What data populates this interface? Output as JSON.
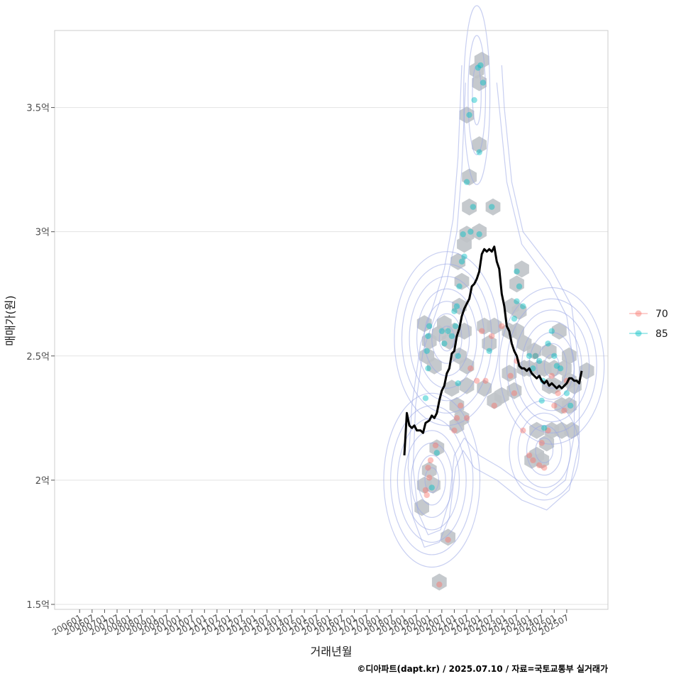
{
  "chart_data": {
    "type": "scatter",
    "xlabel": "거래년월",
    "ylabel": "매매가(원)",
    "caption": "©디아파트(dapt.kr) / 2025.07.10 / 자료=국토교통부 실거래가",
    "x_ticks": [
      "200601",
      "200607",
      "200701",
      "200707",
      "200801",
      "200807",
      "200901",
      "200907",
      "201001",
      "201007",
      "201101",
      "201107",
      "201201",
      "201207",
      "201301",
      "201307",
      "201401",
      "201407",
      "201501",
      "201507",
      "201601",
      "201607",
      "201701",
      "201707",
      "201801",
      "201807",
      "201901",
      "201907",
      "202001",
      "202007",
      "202101",
      "202107",
      "202201",
      "202207",
      "202301",
      "202307",
      "202401",
      "202407",
      "202501",
      "202507"
    ],
    "y_ticks": [
      {
        "value": 1.5,
        "label": "1.5억"
      },
      {
        "value": 2.0,
        "label": "2억"
      },
      {
        "value": 2.5,
        "label": "2.5억"
      },
      {
        "value": 3.0,
        "label": "3억"
      },
      {
        "value": 3.5,
        "label": "3.5억"
      }
    ],
    "y_range": [
      1.48,
      3.81
    ],
    "x_range_index": [
      -2.0,
      42.3
    ],
    "grid": true,
    "legend_position": "right",
    "series": [
      {
        "name": "70",
        "color": "#F8766D",
        "points": [
          [
            28.8,
            1.58
          ],
          [
            27.8,
            1.94
          ],
          [
            27.7,
            1.96
          ],
          [
            28.0,
            2.01
          ],
          [
            27.9,
            2.05
          ],
          [
            28.1,
            2.08
          ],
          [
            28.5,
            2.14
          ],
          [
            29.5,
            1.76
          ],
          [
            30.0,
            2.2
          ],
          [
            30.2,
            2.25
          ],
          [
            30.5,
            2.3
          ],
          [
            31.0,
            2.25
          ],
          [
            31.3,
            2.45
          ],
          [
            31.8,
            2.4
          ],
          [
            32.2,
            2.6
          ],
          [
            33.0,
            2.58
          ],
          [
            33.2,
            2.3
          ],
          [
            34.5,
            2.42
          ],
          [
            34.8,
            2.35
          ],
          [
            35.0,
            2.48
          ],
          [
            35.5,
            2.2
          ],
          [
            36.0,
            2.1
          ],
          [
            36.3,
            2.08
          ],
          [
            36.8,
            2.06
          ],
          [
            37.2,
            2.05
          ],
          [
            37.0,
            2.15
          ],
          [
            37.5,
            2.2
          ],
          [
            38.0,
            2.3
          ],
          [
            38.3,
            2.35
          ],
          [
            38.8,
            2.28
          ],
          [
            39.0,
            2.4
          ],
          [
            37.8,
            2.42
          ],
          [
            36.5,
            2.5
          ],
          [
            33.8,
            2.62
          ],
          [
            32.5,
            2.4
          ]
        ]
      },
      {
        "name": "85",
        "color": "#00BFC4",
        "points": [
          [
            27.7,
            2.33
          ],
          [
            27.9,
            2.45
          ],
          [
            27.8,
            2.52
          ],
          [
            27.9,
            2.58
          ],
          [
            28.0,
            2.62
          ],
          [
            28.2,
            1.97
          ],
          [
            28.6,
            2.11
          ],
          [
            29.2,
            2.55
          ],
          [
            29.5,
            2.6
          ],
          [
            29.8,
            2.58
          ],
          [
            30.1,
            2.62
          ],
          [
            30.3,
            2.5
          ],
          [
            30.0,
            2.68
          ],
          [
            30.2,
            2.7
          ],
          [
            30.4,
            2.78
          ],
          [
            30.6,
            2.88
          ],
          [
            30.8,
            2.9
          ],
          [
            30.7,
            2.99
          ],
          [
            31.3,
            3.0
          ],
          [
            31.0,
            3.2
          ],
          [
            31.5,
            3.1
          ],
          [
            32.0,
            2.99
          ],
          [
            31.2,
            3.47
          ],
          [
            32.0,
            3.32
          ],
          [
            31.6,
            3.53
          ],
          [
            32.3,
            3.6
          ],
          [
            32.1,
            3.67
          ],
          [
            31.9,
            3.66
          ],
          [
            33.0,
            3.1
          ],
          [
            35.0,
            2.84
          ],
          [
            35.2,
            2.78
          ],
          [
            35.0,
            2.72
          ],
          [
            34.8,
            2.65
          ],
          [
            35.5,
            2.7
          ],
          [
            36.0,
            2.5
          ],
          [
            36.5,
            2.5
          ],
          [
            36.3,
            2.45
          ],
          [
            36.8,
            2.48
          ],
          [
            37.1,
            2.4
          ],
          [
            37.0,
            2.32
          ],
          [
            37.5,
            2.55
          ],
          [
            37.8,
            2.6
          ],
          [
            38.0,
            2.5
          ],
          [
            38.2,
            2.46
          ],
          [
            38.5,
            2.45
          ],
          [
            39.0,
            2.35
          ],
          [
            39.3,
            2.3
          ],
          [
            37.2,
            2.21
          ],
          [
            32.8,
            2.52
          ],
          [
            29.0,
            2.6
          ],
          [
            30.3,
            2.39
          ]
        ]
      }
    ],
    "trend_line": {
      "color": "#000000",
      "points": [
        [
          26.0,
          2.1
        ],
        [
          26.2,
          2.27
        ],
        [
          26.4,
          2.22
        ],
        [
          26.6,
          2.21
        ],
        [
          26.8,
          2.22
        ],
        [
          27.0,
          2.2
        ],
        [
          27.3,
          2.2
        ],
        [
          27.5,
          2.19
        ],
        [
          27.7,
          2.23
        ],
        [
          28.0,
          2.24
        ],
        [
          28.2,
          2.26
        ],
        [
          28.4,
          2.25
        ],
        [
          28.6,
          2.27
        ],
        [
          28.8,
          2.32
        ],
        [
          29.0,
          2.36
        ],
        [
          29.2,
          2.38
        ],
        [
          29.4,
          2.43
        ],
        [
          29.6,
          2.45
        ],
        [
          29.8,
          2.51
        ],
        [
          30.0,
          2.52
        ],
        [
          30.2,
          2.58
        ],
        [
          30.4,
          2.61
        ],
        [
          30.6,
          2.66
        ],
        [
          30.8,
          2.69
        ],
        [
          31.0,
          2.71
        ],
        [
          31.2,
          2.73
        ],
        [
          31.4,
          2.78
        ],
        [
          31.6,
          2.79
        ],
        [
          31.8,
          2.81
        ],
        [
          32.0,
          2.84
        ],
        [
          32.2,
          2.91
        ],
        [
          32.4,
          2.93
        ],
        [
          32.6,
          2.92
        ],
        [
          32.8,
          2.93
        ],
        [
          33.0,
          2.92
        ],
        [
          33.2,
          2.94
        ],
        [
          33.4,
          2.88
        ],
        [
          33.6,
          2.85
        ],
        [
          33.8,
          2.75
        ],
        [
          34.0,
          2.7
        ],
        [
          34.2,
          2.62
        ],
        [
          34.4,
          2.6
        ],
        [
          34.6,
          2.55
        ],
        [
          34.8,
          2.52
        ],
        [
          35.0,
          2.5
        ],
        [
          35.2,
          2.46
        ],
        [
          35.4,
          2.45
        ],
        [
          35.6,
          2.45
        ],
        [
          35.8,
          2.44
        ],
        [
          36.0,
          2.45
        ],
        [
          36.2,
          2.43
        ],
        [
          36.4,
          2.42
        ],
        [
          36.6,
          2.41
        ],
        [
          36.8,
          2.42
        ],
        [
          37.0,
          2.4
        ],
        [
          37.2,
          2.39
        ],
        [
          37.4,
          2.4
        ],
        [
          37.6,
          2.38
        ],
        [
          37.8,
          2.39
        ],
        [
          38.0,
          2.38
        ],
        [
          38.2,
          2.37
        ],
        [
          38.4,
          2.38
        ],
        [
          38.6,
          2.37
        ],
        [
          38.8,
          2.38
        ],
        [
          39.0,
          2.39
        ],
        [
          39.2,
          2.41
        ],
        [
          39.4,
          2.41
        ],
        [
          39.6,
          2.4
        ],
        [
          39.8,
          2.4
        ],
        [
          40.0,
          2.39
        ],
        [
          40.2,
          2.44
        ]
      ]
    },
    "hexbins": [
      [
        28.8,
        1.59
      ],
      [
        27.4,
        1.89
      ],
      [
        27.6,
        1.98
      ],
      [
        28.0,
        2.04
      ],
      [
        28.3,
        1.98
      ],
      [
        28.6,
        2.13
      ],
      [
        29.5,
        1.77
      ],
      [
        27.6,
        2.63
      ],
      [
        28.0,
        2.56
      ],
      [
        28.4,
        2.46
      ],
      [
        27.8,
        2.5
      ],
      [
        28.8,
        2.59
      ],
      [
        29.2,
        2.63
      ],
      [
        29.6,
        2.56
      ],
      [
        30.0,
        2.6
      ],
      [
        30.4,
        2.5
      ],
      [
        30.8,
        2.6
      ],
      [
        29.8,
        2.37
      ],
      [
        30.2,
        2.3
      ],
      [
        30.2,
        2.22
      ],
      [
        30.6,
        2.25
      ],
      [
        31.0,
        2.38
      ],
      [
        31.0,
        2.46
      ],
      [
        30.4,
        2.7
      ],
      [
        30.6,
        2.8
      ],
      [
        30.3,
        2.88
      ],
      [
        30.8,
        2.95
      ],
      [
        31.0,
        2.99
      ],
      [
        31.2,
        3.1
      ],
      [
        31.2,
        3.22
      ],
      [
        31.0,
        3.47
      ],
      [
        32.0,
        3.35
      ],
      [
        32.0,
        3.6
      ],
      [
        32.2,
        3.69
      ],
      [
        31.8,
        3.65
      ],
      [
        32.0,
        3.0
      ],
      [
        33.1,
        3.1
      ],
      [
        32.4,
        2.62
      ],
      [
        32.8,
        2.55
      ],
      [
        33.2,
        2.62
      ],
      [
        32.4,
        2.37
      ],
      [
        33.2,
        2.32
      ],
      [
        33.8,
        2.34
      ],
      [
        34.4,
        2.6
      ],
      [
        34.4,
        2.43
      ],
      [
        34.8,
        2.36
      ],
      [
        35.0,
        2.79
      ],
      [
        35.4,
        2.85
      ],
      [
        34.6,
        2.7
      ],
      [
        35.2,
        2.68
      ],
      [
        35.0,
        2.6
      ],
      [
        35.6,
        2.55
      ],
      [
        35.6,
        2.45
      ],
      [
        36.0,
        2.45
      ],
      [
        36.4,
        2.52
      ],
      [
        36.8,
        2.45
      ],
      [
        37.2,
        2.45
      ],
      [
        37.6,
        2.52
      ],
      [
        38.0,
        2.45
      ],
      [
        38.0,
        2.38
      ],
      [
        37.6,
        2.38
      ],
      [
        38.4,
        2.6
      ],
      [
        38.8,
        2.45
      ],
      [
        39.2,
        2.4
      ],
      [
        39.2,
        2.3
      ],
      [
        38.6,
        2.3
      ],
      [
        39.4,
        2.2
      ],
      [
        38.6,
        2.2
      ],
      [
        37.8,
        2.2
      ],
      [
        37.4,
        2.15
      ],
      [
        36.6,
        2.2
      ],
      [
        36.2,
        2.08
      ],
      [
        36.6,
        2.1
      ],
      [
        37.0,
        2.08
      ],
      [
        39.2,
        2.5
      ],
      [
        39.6,
        2.38
      ],
      [
        40.6,
        2.44
      ]
    ]
  }
}
